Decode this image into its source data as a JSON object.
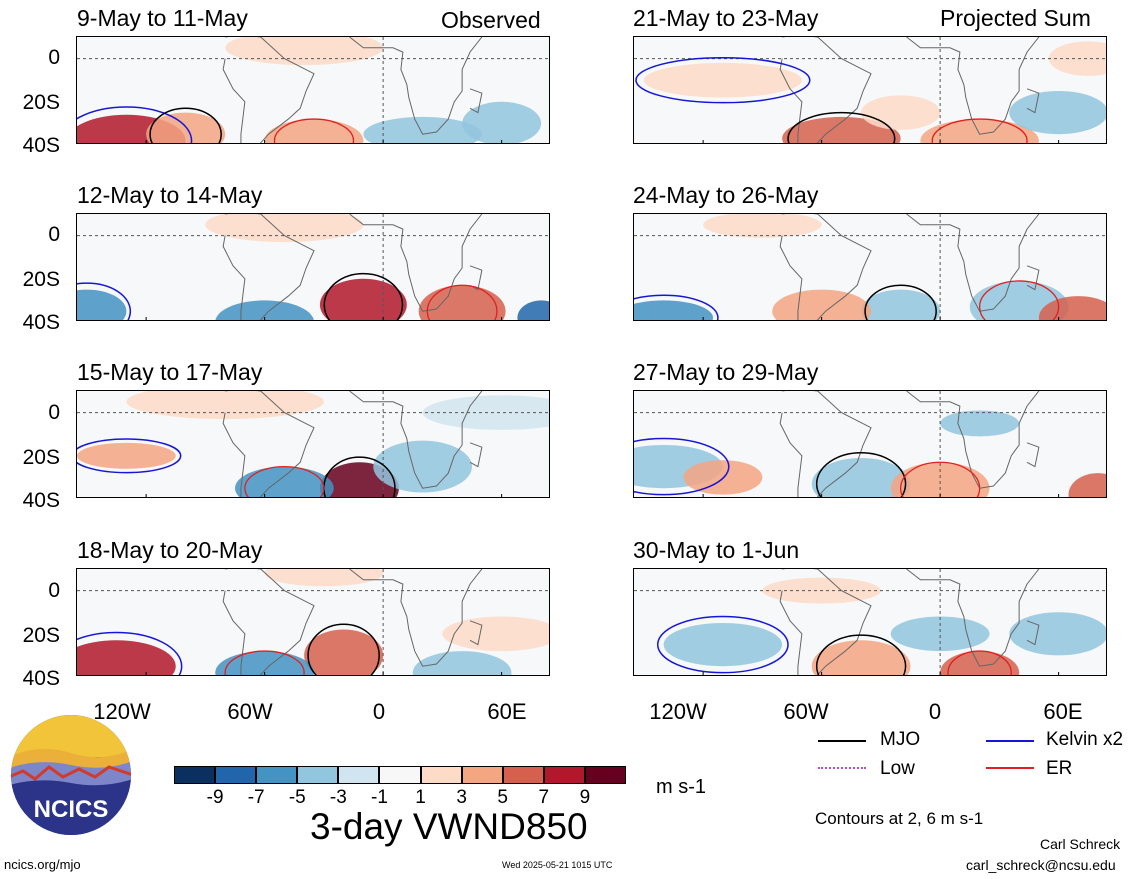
{
  "panels": [
    {
      "title": "9-May to 11-May",
      "tag": "Observed"
    },
    {
      "title": "12-May to 14-May",
      "tag": ""
    },
    {
      "title": "15-May to 17-May",
      "tag": ""
    },
    {
      "title": "18-May to 20-May",
      "tag": ""
    },
    {
      "title": "21-May to 23-May",
      "tag": "Projected Sum"
    },
    {
      "title": "24-May to 26-May",
      "tag": ""
    },
    {
      "title": "27-May to 29-May",
      "tag": ""
    },
    {
      "title": "30-May to 1-Jun",
      "tag": ""
    }
  ],
  "y_ticks": [
    "0",
    "20S",
    "40S"
  ],
  "x_ticks": [
    "120W",
    "60W",
    "0",
    "60E"
  ],
  "colorbar": {
    "ticks": [
      "-9",
      "-7",
      "-5",
      "-3",
      "-1",
      "1",
      "3",
      "5",
      "7",
      "9"
    ],
    "colors": [
      "#0b2f5f",
      "#2166ac",
      "#4393c3",
      "#92c5de",
      "#d1e5f0",
      "#f7f7f7",
      "#fddbc7",
      "#f4a582",
      "#d6604d",
      "#b2182b",
      "#67001f"
    ],
    "units": "m s-1"
  },
  "legend": {
    "mjo": "MJO",
    "low": "Low",
    "kelvin": "Kelvin x2",
    "er": "ER",
    "colors": {
      "mjo": "#000000",
      "low": "#b84bd6",
      "kelvin": "#1616d8",
      "er": "#e02020"
    }
  },
  "contours_note": "Contours at 2, 6 m s-1",
  "main_title": "3-day VWND850",
  "logo_text": "NCICS",
  "footer": {
    "url": "ncics.org/mjo",
    "timestamp": "Wed 2025-05-21 1015 UTC",
    "author": "Carl Schreck",
    "email": "carl_schreck@ncsu.edu"
  }
}
